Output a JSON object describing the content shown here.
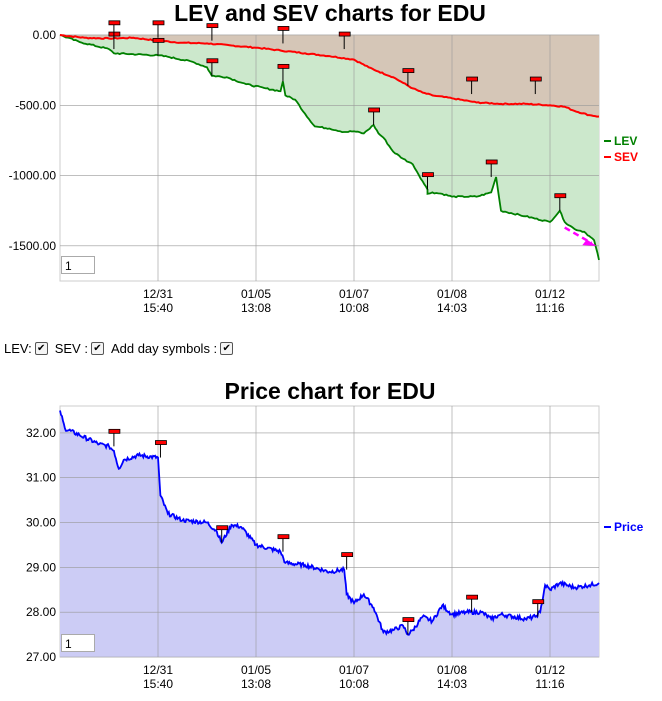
{
  "chart_data": [
    {
      "type": "line",
      "title": "LEV and SEV charts for EDU",
      "x_ticks": [
        {
          "date": "12/31",
          "time": "15:40"
        },
        {
          "date": "01/05",
          "time": "13:08"
        },
        {
          "date": "01/07",
          "time": "10:08"
        },
        {
          "date": "01/08",
          "time": "14:03"
        },
        {
          "date": "01/12",
          "time": "11:16"
        }
      ],
      "y_ticks": [
        "0.00",
        "-500.00",
        "-1000.00",
        "-1500.00"
      ],
      "ylim": [
        -1750,
        0
      ],
      "grid": true,
      "legend_position": "right",
      "series": [
        {
          "name": "LEV",
          "color": "#008000",
          "fill": "#cce8cc",
          "points": [
            [
              0,
              0
            ],
            [
              0.04,
              -50
            ],
            [
              0.1,
              -100
            ],
            [
              0.11,
              -130
            ],
            [
              0.2,
              -145
            ],
            [
              0.22,
              -155
            ],
            [
              0.27,
              -190
            ],
            [
              0.3,
              -230
            ],
            [
              0.31,
              -290
            ],
            [
              0.34,
              -300
            ],
            [
              0.38,
              -350
            ],
            [
              0.42,
              -380
            ],
            [
              0.45,
              -400
            ],
            [
              0.455,
              -330
            ],
            [
              0.46,
              -430
            ],
            [
              0.48,
              -460
            ],
            [
              0.5,
              -560
            ],
            [
              0.52,
              -650
            ],
            [
              0.55,
              -665
            ],
            [
              0.58,
              -690
            ],
            [
              0.6,
              -685
            ],
            [
              0.62,
              -700
            ],
            [
              0.64,
              -640
            ],
            [
              0.65,
              -700
            ],
            [
              0.66,
              -730
            ],
            [
              0.68,
              -830
            ],
            [
              0.7,
              -880
            ],
            [
              0.72,
              -920
            ],
            [
              0.74,
              -1040
            ],
            [
              0.75,
              -1100
            ],
            [
              0.7500001,
              -1130
            ],
            [
              0.76,
              -1120
            ],
            [
              0.78,
              -1130
            ],
            [
              0.8,
              -1150
            ],
            [
              0.85,
              -1150
            ],
            [
              0.88,
              -1120
            ],
            [
              0.89,
              -1010
            ],
            [
              0.895,
              -1130
            ],
            [
              0.9,
              -1250
            ],
            [
              0.95,
              -1290
            ],
            [
              1.0,
              -1330
            ],
            [
              1.02,
              -1250
            ],
            [
              1.03,
              -1330
            ],
            [
              1.05,
              -1380
            ],
            [
              1.07,
              -1400
            ],
            [
              1.08,
              -1430
            ],
            [
              1.09,
              -1460
            ],
            [
              1.1,
              -1600
            ]
          ]
        },
        {
          "name": "SEV",
          "color": "#ff0000",
          "fill": "#d5c6b7",
          "points": [
            [
              0,
              0
            ],
            [
              0.05,
              -20
            ],
            [
              0.1,
              -25
            ],
            [
              0.15,
              -20
            ],
            [
              0.2,
              -40
            ],
            [
              0.25,
              -55
            ],
            [
              0.3,
              -60
            ],
            [
              0.35,
              -75
            ],
            [
              0.4,
              -90
            ],
            [
              0.45,
              -110
            ],
            [
              0.5,
              -130
            ],
            [
              0.55,
              -150
            ],
            [
              0.6,
              -175
            ],
            [
              0.63,
              -230
            ],
            [
              0.65,
              -260
            ],
            [
              0.68,
              -300
            ],
            [
              0.7,
              -340
            ],
            [
              0.72,
              -380
            ],
            [
              0.74,
              -410
            ],
            [
              0.76,
              -430
            ],
            [
              0.8,
              -450
            ],
            [
              0.85,
              -480
            ],
            [
              0.9,
              -490
            ],
            [
              0.95,
              -490
            ],
            [
              1.0,
              -500
            ],
            [
              1.03,
              -510
            ],
            [
              1.05,
              -540
            ],
            [
              1.08,
              -570
            ],
            [
              1.1,
              -580
            ]
          ]
        }
      ],
      "day_markers": [
        {
          "x": 0.11,
          "y": -100
        },
        {
          "x": 0.2,
          "y": -145
        },
        {
          "x": 0.31,
          "y": -290
        },
        {
          "x": 0.455,
          "y": -330
        },
        {
          "x": 0.64,
          "y": -640
        },
        {
          "x": 0.75,
          "y": -1100
        },
        {
          "x": 0.88,
          "y": -1010
        },
        {
          "x": 1.02,
          "y": -1250
        },
        {
          "x": 0.11,
          "y": -20
        },
        {
          "x": 0.2,
          "y": -20
        },
        {
          "x": 0.31,
          "y": -40
        },
        {
          "x": 0.455,
          "y": -60
        },
        {
          "x": 0.58,
          "y": -100
        },
        {
          "x": 0.71,
          "y": -360
        },
        {
          "x": 0.84,
          "y": -420
        },
        {
          "x": 0.97,
          "y": -420
        }
      ],
      "input_value": "1"
    },
    {
      "type": "area",
      "title": "Price chart for EDU",
      "x_ticks": [
        {
          "date": "12/31",
          "time": "15:40"
        },
        {
          "date": "01/05",
          "time": "13:08"
        },
        {
          "date": "01/07",
          "time": "10:08"
        },
        {
          "date": "01/08",
          "time": "14:03"
        },
        {
          "date": "01/12",
          "time": "11:16"
        }
      ],
      "y_ticks": [
        "32.00",
        "31.00",
        "30.00",
        "29.00",
        "28.00",
        "27.00"
      ],
      "ylim": [
        27,
        32.6
      ],
      "grid": true,
      "legend_position": "right",
      "series": [
        {
          "name": "Price",
          "color": "#0000ff",
          "fill": "#ccccf5",
          "points": [
            [
              0,
              32.5
            ],
            [
              0.01,
              32.1
            ],
            [
              0.04,
              31.95
            ],
            [
              0.08,
              31.75
            ],
            [
              0.1,
              31.7
            ],
            [
              0.11,
              31.6
            ],
            [
              0.12,
              31.2
            ],
            [
              0.13,
              31.4
            ],
            [
              0.16,
              31.5
            ],
            [
              0.2,
              31.45
            ],
            [
              0.205,
              30.6
            ],
            [
              0.22,
              30.2
            ],
            [
              0.25,
              30.05
            ],
            [
              0.3,
              30.0
            ],
            [
              0.32,
              29.8
            ],
            [
              0.33,
              29.55
            ],
            [
              0.35,
              29.95
            ],
            [
              0.37,
              29.9
            ],
            [
              0.4,
              29.5
            ],
            [
              0.45,
              29.35
            ],
            [
              0.46,
              29.1
            ],
            [
              0.5,
              29.05
            ],
            [
              0.55,
              28.9
            ],
            [
              0.58,
              28.95
            ],
            [
              0.585,
              28.4
            ],
            [
              0.6,
              28.2
            ],
            [
              0.62,
              28.4
            ],
            [
              0.64,
              28.1
            ],
            [
              0.66,
              27.55
            ],
            [
              0.68,
              27.6
            ],
            [
              0.7,
              27.7
            ],
            [
              0.71,
              27.5
            ],
            [
              0.72,
              27.6
            ],
            [
              0.74,
              27.9
            ],
            [
              0.76,
              27.8
            ],
            [
              0.78,
              28.15
            ],
            [
              0.8,
              27.95
            ],
            [
              0.83,
              28.0
            ],
            [
              0.86,
              28.0
            ],
            [
              0.88,
              27.85
            ],
            [
              0.9,
              27.95
            ],
            [
              0.95,
              27.85
            ],
            [
              0.97,
              27.9
            ],
            [
              0.98,
              28.0
            ],
            [
              0.99,
              28.6
            ],
            [
              1.0,
              28.5
            ],
            [
              1.02,
              28.65
            ],
            [
              1.05,
              28.55
            ],
            [
              1.08,
              28.6
            ],
            [
              1.1,
              28.65
            ]
          ]
        }
      ],
      "day_markers": [
        {
          "x": 0.11,
          "y": 31.7
        },
        {
          "x": 0.205,
          "y": 31.45
        },
        {
          "x": 0.33,
          "y": 29.55
        },
        {
          "x": 0.455,
          "y": 29.35
        },
        {
          "x": 0.585,
          "y": 28.95
        },
        {
          "x": 0.71,
          "y": 27.5
        },
        {
          "x": 0.84,
          "y": 28.0
        },
        {
          "x": 0.975,
          "y": 27.9
        }
      ],
      "input_value": "1"
    }
  ],
  "controls": {
    "lev_label": "LEV:",
    "sev_label": "SEV :",
    "day_symbols_label": "Add day symbols :",
    "check_mark": "✔"
  }
}
